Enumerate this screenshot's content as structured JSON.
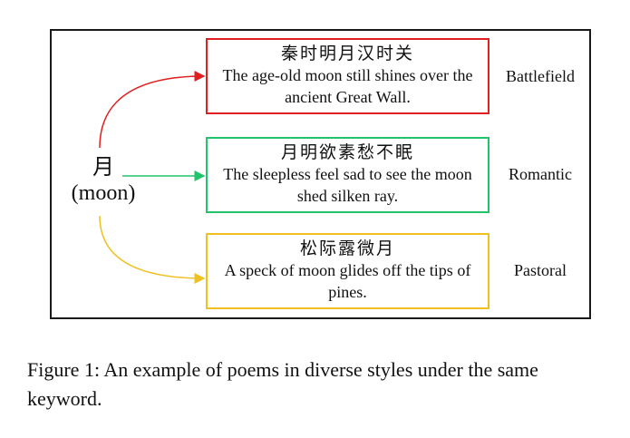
{
  "keyword": {
    "chinese": "月",
    "english": "(moon)"
  },
  "poems": [
    {
      "chinese": "秦时明月汉时关",
      "english": "The age-old moon still shines over the ancient Great Wall.",
      "style": "Battlefield",
      "color": "#e02020"
    },
    {
      "chinese": "月明欲素愁不眠",
      "english": "The sleepless feel sad to see the moon shed silken ray.",
      "style": "Romantic",
      "color": "#21c46a"
    },
    {
      "chinese": "松际露微月",
      "english": "A speck of moon glides off the tips of pines.",
      "style": "Pastoral",
      "color": "#f0c020"
    }
  ],
  "caption": "Figure 1: An example of poems in diverse styles under the same keyword."
}
